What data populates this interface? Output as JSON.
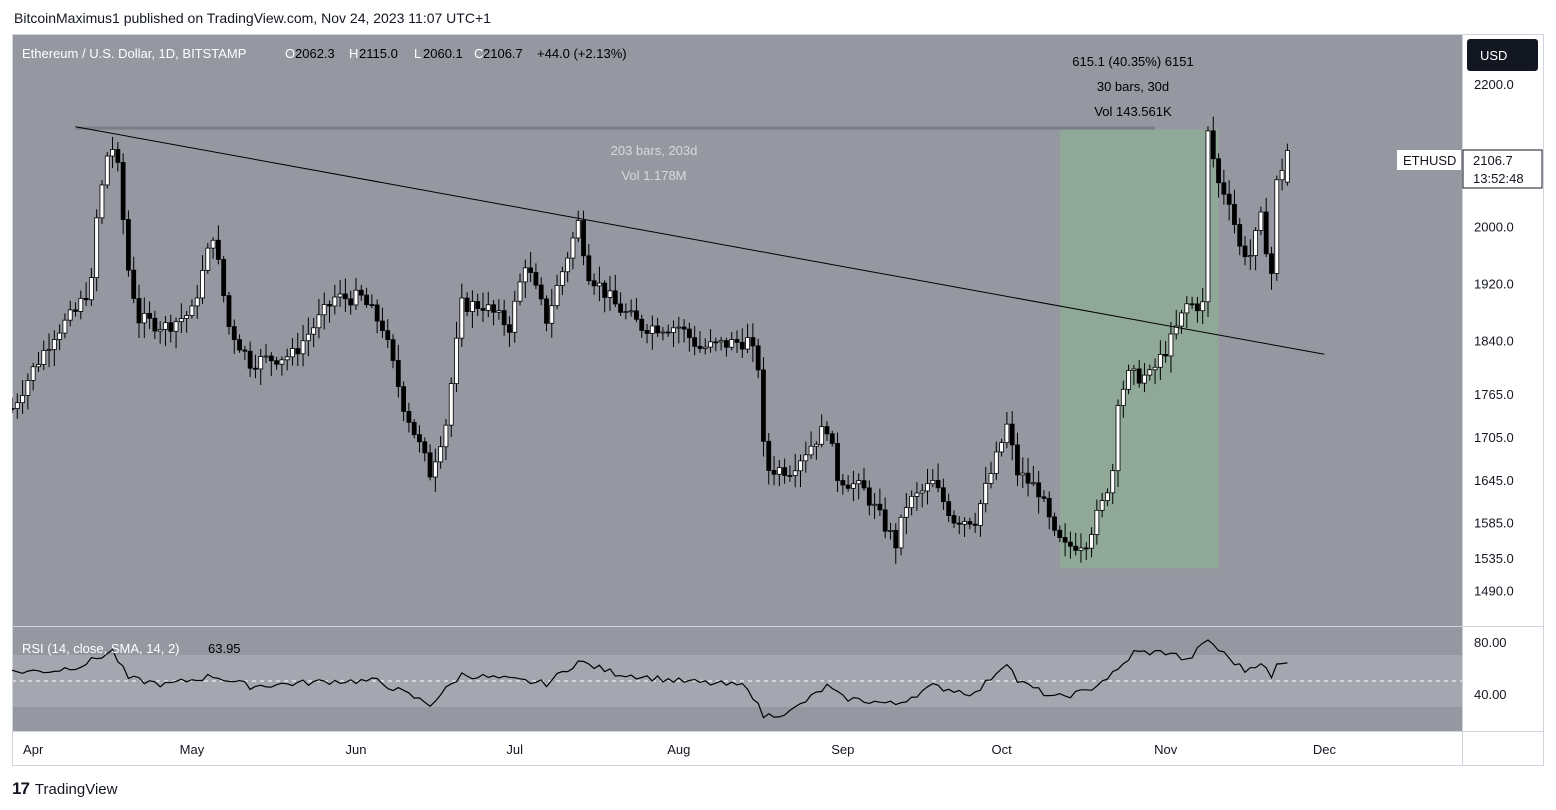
{
  "caption": "BitcoinMaximus1 published on TradingView.com, Nov 24, 2023 11:07 UTC+1",
  "header": {
    "symbol": "Ethereum / U.S. Dollar, 1D, BITSTAMP",
    "o_label": "O",
    "o_value": "2062.3",
    "h_label": "H",
    "h_value": "2115.0",
    "l_label": "L",
    "l_value": "2060.1",
    "c_label": "C",
    "c_value": "2106.7",
    "change": "+44.0 (+2.13%)"
  },
  "currency_button": "USD",
  "price_tag": {
    "symbol": "ETHUSD",
    "price": "2106.7",
    "countdown": "13:52:48"
  },
  "measure_box": {
    "line1": "615.1 (40.35%) 6151",
    "line2": "30 bars, 30d",
    "line3": "Vol 143.561K",
    "start": "2023-10-12",
    "end": "2023-11-11",
    "low": 1521,
    "high": 2136
  },
  "range_ruler": {
    "line1": "203 bars, 203d",
    "line2": "Vol 1.178M",
    "start": "2023-04-09",
    "end": "2023-10-30",
    "price": 2138
  },
  "trendline": {
    "from": {
      "date": "2023-04-09",
      "price": 2140
    },
    "to": {
      "date": "2023-12-01",
      "price": 1821
    }
  },
  "rsi": {
    "label": "RSI (14, close, SMA, 14, 2)",
    "value": "63.95",
    "band_upper": 70,
    "band_lower": 30,
    "mid": 50
  },
  "footer": {
    "logo": "17",
    "brand": "TradingView"
  },
  "colors": {
    "pane_bg": "#9598a1",
    "up": "#ffffff",
    "down": "#000000",
    "highlight": "#8fa898",
    "band": "#a4a7af",
    "text_light": "#d8dae0"
  },
  "chart_data": {
    "type": "candlestick",
    "title": "Ethereum / U.S. Dollar, 1D, BITSTAMP",
    "x_range": [
      "2023-03-28",
      "2023-12-27"
    ],
    "y_range": [
      1440,
      2270
    ],
    "y_ticks": [
      {
        "value": 2200,
        "label": "2200.0"
      },
      {
        "value": 2000,
        "label": "2000.0"
      },
      {
        "value": 1920,
        "label": "1920.0"
      },
      {
        "value": 1840,
        "label": "1840.0"
      },
      {
        "value": 1765,
        "label": "1765.0"
      },
      {
        "value": 1705,
        "label": "1705.0"
      },
      {
        "value": 1645,
        "label": "1645.0"
      },
      {
        "value": 1585,
        "label": "1585.0"
      },
      {
        "value": 1535,
        "label": "1535.0"
      },
      {
        "value": 1490,
        "label": "1490.0"
      }
    ],
    "x_ticks": [
      {
        "date": "2023-04-01",
        "label": "Apr"
      },
      {
        "date": "2023-05-01",
        "label": "May"
      },
      {
        "date": "2023-06-01",
        "label": "Jun"
      },
      {
        "date": "2023-07-01",
        "label": "Jul"
      },
      {
        "date": "2023-08-01",
        "label": "Aug"
      },
      {
        "date": "2023-09-01",
        "label": "Sep"
      },
      {
        "date": "2023-10-01",
        "label": "Oct"
      },
      {
        "date": "2023-11-01",
        "label": "Nov"
      },
      {
        "date": "2023-12-01",
        "label": "Dec"
      }
    ],
    "anchors": [
      [
        "2023-03-28",
        1745
      ],
      [
        "2023-04-01",
        1800
      ],
      [
        "2023-04-05",
        1850
      ],
      [
        "2023-04-09",
        1880
      ],
      [
        "2023-04-12",
        1920
      ],
      [
        "2023-04-13",
        2010
      ],
      [
        "2023-04-15",
        2100
      ],
      [
        "2023-04-16",
        2110
      ],
      [
        "2023-04-17",
        2080
      ],
      [
        "2023-04-19",
        1940
      ],
      [
        "2023-04-21",
        1870
      ],
      [
        "2023-04-26",
        1860
      ],
      [
        "2023-05-01",
        1880
      ],
      [
        "2023-05-05",
        1990
      ],
      [
        "2023-05-08",
        1860
      ],
      [
        "2023-05-12",
        1810
      ],
      [
        "2023-05-20",
        1820
      ],
      [
        "2023-05-28",
        1900
      ],
      [
        "2023-06-02",
        1900
      ],
      [
        "2023-06-06",
        1860
      ],
      [
        "2023-06-10",
        1750
      ],
      [
        "2023-06-15",
        1655
      ],
      [
        "2023-06-18",
        1725
      ],
      [
        "2023-06-21",
        1890
      ],
      [
        "2023-06-25",
        1890
      ],
      [
        "2023-06-30",
        1860
      ],
      [
        "2023-07-03",
        1950
      ],
      [
        "2023-07-07",
        1870
      ],
      [
        "2023-07-13",
        2005
      ],
      [
        "2023-07-15",
        1935
      ],
      [
        "2023-07-20",
        1890
      ],
      [
        "2023-07-25",
        1860
      ],
      [
        "2023-08-01",
        1860
      ],
      [
        "2023-08-05",
        1830
      ],
      [
        "2023-08-14",
        1840
      ],
      [
        "2023-08-16",
        1805
      ],
      [
        "2023-08-17",
        1690
      ],
      [
        "2023-08-18",
        1660
      ],
      [
        "2023-08-22",
        1660
      ],
      [
        "2023-08-29",
        1720
      ],
      [
        "2023-08-31",
        1650
      ],
      [
        "2023-09-05",
        1630
      ],
      [
        "2023-09-11",
        1555
      ],
      [
        "2023-09-13",
        1610
      ],
      [
        "2023-09-18",
        1640
      ],
      [
        "2023-09-22",
        1590
      ],
      [
        "2023-09-26",
        1590
      ],
      [
        "2023-09-30",
        1675
      ],
      [
        "2023-10-02",
        1720
      ],
      [
        "2023-10-04",
        1655
      ],
      [
        "2023-10-08",
        1630
      ],
      [
        "2023-10-11",
        1565
      ],
      [
        "2023-10-13",
        1550
      ],
      [
        "2023-10-17",
        1560
      ],
      [
        "2023-10-20",
        1610
      ],
      [
        "2023-10-22",
        1660
      ],
      [
        "2023-10-23",
        1760
      ],
      [
        "2023-10-25",
        1790
      ],
      [
        "2023-10-29",
        1790
      ],
      [
        "2023-11-02",
        1840
      ],
      [
        "2023-11-05",
        1890
      ],
      [
        "2023-11-08",
        1890
      ],
      [
        "2023-11-09",
        2130
      ],
      [
        "2023-11-11",
        2060
      ],
      [
        "2023-11-13",
        2040
      ],
      [
        "2023-11-15",
        1970
      ],
      [
        "2023-11-17",
        1960
      ],
      [
        "2023-11-19",
        2010
      ],
      [
        "2023-11-21",
        1935
      ],
      [
        "2023-11-22",
        2060
      ],
      [
        "2023-11-24",
        2106.7
      ]
    ],
    "rsi_anchors": [
      [
        "2023-03-28",
        57
      ],
      [
        "2023-04-05",
        58
      ],
      [
        "2023-04-10",
        62
      ],
      [
        "2023-04-16",
        73
      ],
      [
        "2023-04-19",
        52
      ],
      [
        "2023-04-26",
        47
      ],
      [
        "2023-05-05",
        54
      ],
      [
        "2023-05-12",
        46
      ],
      [
        "2023-05-28",
        50
      ],
      [
        "2023-06-05",
        50
      ],
      [
        "2023-06-15",
        32
      ],
      [
        "2023-06-21",
        55
      ],
      [
        "2023-07-07",
        48
      ],
      [
        "2023-07-13",
        65
      ],
      [
        "2023-07-20",
        56
      ],
      [
        "2023-08-01",
        50
      ],
      [
        "2023-08-14",
        46
      ],
      [
        "2023-08-17",
        23
      ],
      [
        "2023-08-22",
        26
      ],
      [
        "2023-08-29",
        46
      ],
      [
        "2023-09-01",
        37
      ],
      [
        "2023-09-11",
        32
      ],
      [
        "2023-09-18",
        46
      ],
      [
        "2023-09-26",
        40
      ],
      [
        "2023-10-02",
        65
      ],
      [
        "2023-10-04",
        50
      ],
      [
        "2023-10-11",
        37
      ],
      [
        "2023-10-17",
        42
      ],
      [
        "2023-10-23",
        58
      ],
      [
        "2023-10-26",
        72
      ],
      [
        "2023-11-02",
        72
      ],
      [
        "2023-11-05",
        65
      ],
      [
        "2023-11-09",
        82
      ],
      [
        "2023-11-11",
        74
      ],
      [
        "2023-11-16",
        58
      ],
      [
        "2023-11-19",
        65
      ],
      [
        "2023-11-21",
        52
      ],
      [
        "2023-11-22",
        62
      ],
      [
        "2023-11-24",
        63.95
      ]
    ]
  }
}
